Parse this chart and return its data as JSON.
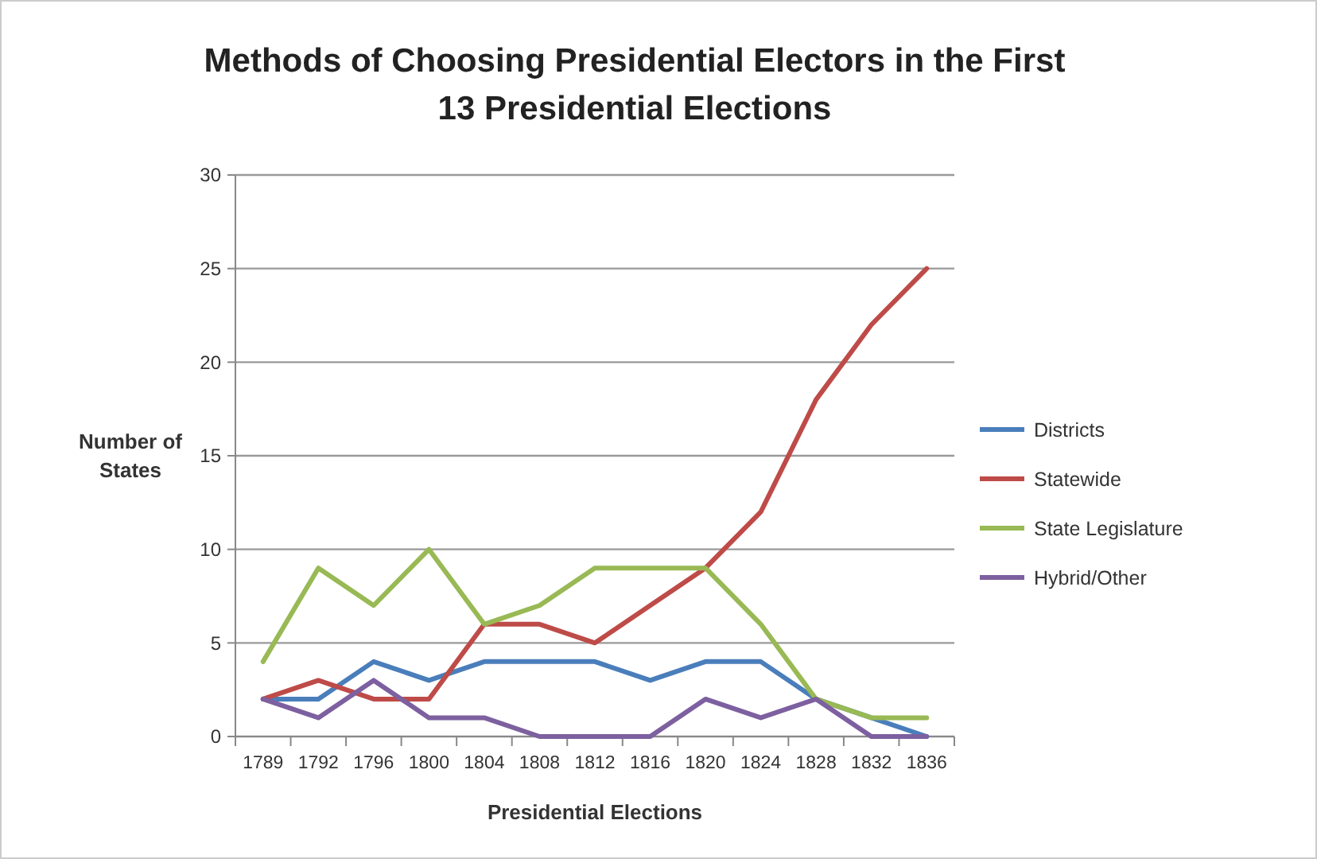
{
  "chart_data": {
    "type": "line",
    "title": "Methods of Choosing Presidential Electors in the First 13 Presidential Elections",
    "xlabel": "Presidential Elections",
    "ylabel": "Number of States",
    "categories": [
      "1789",
      "1792",
      "1796",
      "1800",
      "1804",
      "1808",
      "1812",
      "1816",
      "1820",
      "1824",
      "1828",
      "1832",
      "1836"
    ],
    "series": [
      {
        "name": "Districts",
        "color": "#4a7ebb",
        "values": [
          2,
          2,
          4,
          3,
          4,
          4,
          4,
          3,
          4,
          4,
          2,
          1,
          0
        ]
      },
      {
        "name": "Statewide",
        "color": "#be4b48",
        "values": [
          2,
          3,
          2,
          2,
          6,
          6,
          5,
          7,
          9,
          12,
          18,
          22,
          25
        ]
      },
      {
        "name": "State Legislature",
        "color": "#98b954",
        "values": [
          4,
          9,
          7,
          10,
          6,
          7,
          9,
          9,
          9,
          6,
          2,
          1,
          1
        ]
      },
      {
        "name": "Hybrid/Other",
        "color": "#7d60a0",
        "values": [
          2,
          1,
          3,
          1,
          1,
          0,
          0,
          0,
          2,
          1,
          2,
          0,
          0
        ]
      }
    ],
    "ylim": [
      0,
      30
    ],
    "yticks": [
      0,
      5,
      10,
      15,
      20,
      25,
      30
    ],
    "grid": "y",
    "legend": "right",
    "marker": "none"
  }
}
